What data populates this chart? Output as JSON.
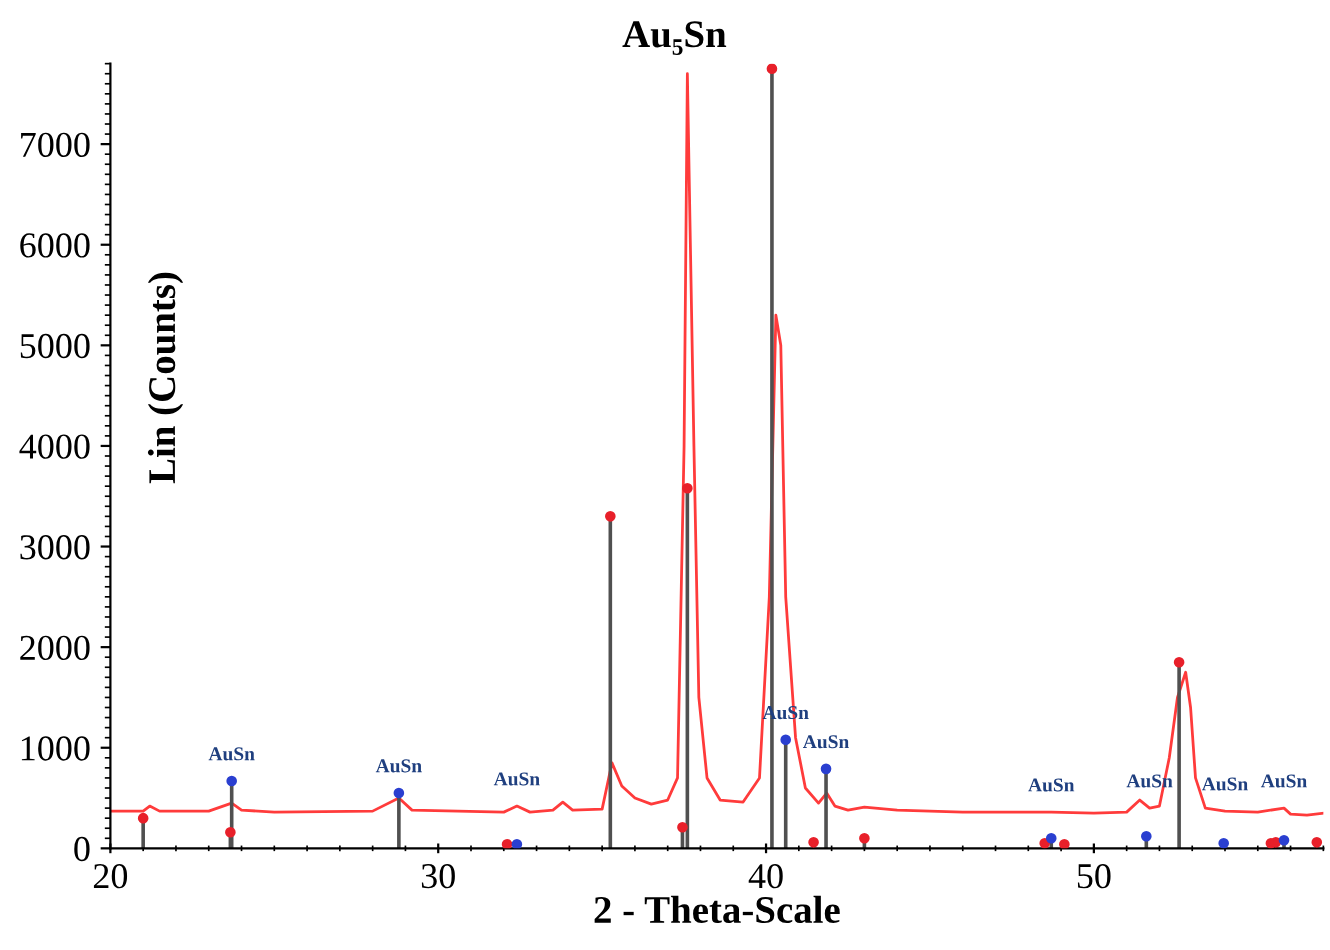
{
  "chart_data": {
    "type": "line",
    "title": "Au₅Sn",
    "xlabel": "2 - Theta-Scale",
    "ylabel": "Lin (Counts)",
    "xlim": [
      20,
      57
    ],
    "ylim": [
      0,
      7800
    ],
    "xticks": [
      20,
      30,
      40,
      50
    ],
    "yticks": [
      0,
      1000,
      2000,
      3000,
      4000,
      5000,
      6000,
      7000
    ],
    "grid": false,
    "legend": false,
    "series": [
      {
        "color": "#ff3b3b",
        "x": [
          20,
          21,
          21.2,
          21.5,
          23,
          23.7,
          24,
          25,
          28,
          28.8,
          29.2,
          32,
          32.4,
          32.8,
          33.5,
          33.8,
          34.1,
          35,
          35.3,
          35.6,
          36,
          36.5,
          37,
          37.3,
          37.5,
          37.6,
          37.8,
          37.95,
          38.2,
          38.6,
          39.3,
          39.8,
          40.1,
          40.3,
          40.45,
          40.6,
          40.9,
          41.2,
          41.6,
          41.85,
          42.1,
          42.5,
          43,
          44,
          46,
          48.7,
          50,
          51,
          51.4,
          51.7,
          52,
          52.3,
          52.55,
          52.8,
          52.95,
          53.1,
          53.4,
          54,
          55,
          55.8,
          56,
          56.5,
          57
        ],
        "values": [
          370,
          370,
          420,
          370,
          370,
          450,
          380,
          360,
          370,
          500,
          380,
          360,
          420,
          360,
          380,
          460,
          380,
          390,
          850,
          620,
          500,
          440,
          480,
          700,
          4000,
          7700,
          4000,
          1500,
          700,
          480,
          460,
          700,
          2500,
          5300,
          5000,
          2500,
          1100,
          600,
          450,
          550,
          420,
          380,
          410,
          380,
          360,
          360,
          350,
          360,
          480,
          400,
          420,
          900,
          1500,
          1750,
          1400,
          700,
          400,
          370,
          360,
          400,
          340,
          330,
          350
        ]
      },
      {
        "type": "lollipop",
        "color": "#e8202a",
        "x": [
          21.0,
          23.66,
          32.1,
          35.25,
          37.45,
          37.6,
          40.18,
          41.45,
          43.0,
          48.5,
          49.1,
          52.6,
          55.4,
          55.55,
          56.8
        ],
        "values": [
          300,
          160,
          40,
          3300,
          210,
          3580,
          7750,
          60,
          100,
          50,
          40,
          1850,
          50,
          60,
          60
        ]
      },
      {
        "type": "lollipop",
        "color": "#2a3fd0",
        "x": [
          23.7,
          28.8,
          32.4,
          40.6,
          41.83,
          48.7,
          51.6,
          53.96,
          55.8
        ],
        "values": [
          670,
          550,
          40,
          1080,
          790,
          100,
          120,
          50,
          80
        ]
      }
    ],
    "annotations": [
      {
        "text": "AuSn",
        "x": 23.7,
        "y": 670
      },
      {
        "text": "AuSn",
        "x": 28.8,
        "y": 550
      },
      {
        "text": "AuSn",
        "x": 32.4,
        "y": 420
      },
      {
        "text": "AuSn",
        "x": 40.6,
        "y": 1080
      },
      {
        "text": "AuSn",
        "x": 41.83,
        "y": 790
      },
      {
        "text": "AuSn",
        "x": 48.7,
        "y": 360
      },
      {
        "text": "AuSn",
        "x": 51.7,
        "y": 400
      },
      {
        "text": "AuSn",
        "x": 54,
        "y": 370
      },
      {
        "text": "AuSn",
        "x": 55.8,
        "y": 400
      }
    ]
  }
}
